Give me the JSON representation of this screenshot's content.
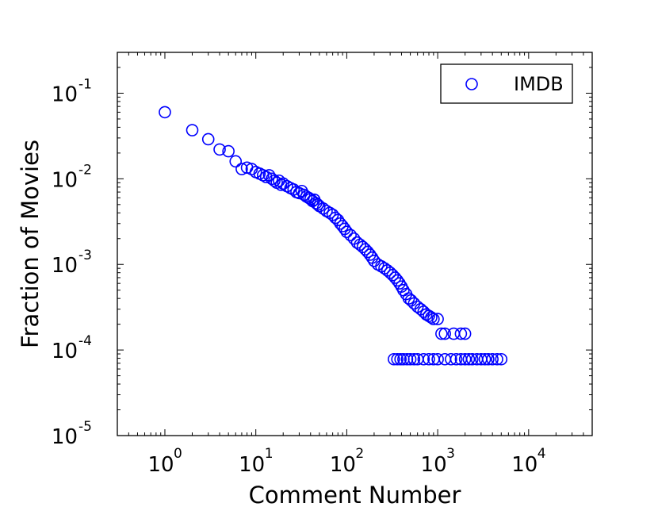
{
  "chart_data": {
    "type": "scatter",
    "xlabel": "Comment Number",
    "ylabel": "Fraction of Movies",
    "x_scale": "log",
    "y_scale": "log",
    "xlim": [
      0.3,
      50000
    ],
    "ylim": [
      1e-05,
      0.3
    ],
    "x_ticks": [
      {
        "base": "10",
        "exp": "0",
        "value": 1
      },
      {
        "base": "10",
        "exp": "1",
        "value": 10
      },
      {
        "base": "10",
        "exp": "2",
        "value": 100
      },
      {
        "base": "10",
        "exp": "3",
        "value": 1000
      },
      {
        "base": "10",
        "exp": "4",
        "value": 10000
      }
    ],
    "y_ticks": [
      {
        "base": "10",
        "exp": "-1",
        "value": 0.1
      },
      {
        "base": "10",
        "exp": "-2",
        "value": 0.01
      },
      {
        "base": "10",
        "exp": "-3",
        "value": 0.001
      },
      {
        "base": "10",
        "exp": "-4",
        "value": 0.0001
      },
      {
        "base": "10",
        "exp": "-5",
        "value": 1e-05
      }
    ],
    "grid": false,
    "legend_position": "top-right",
    "series": [
      {
        "name": "IMDB",
        "color": "#0000ff",
        "marker": "open-circle",
        "x": [
          1,
          2,
          3,
          4,
          5,
          6,
          7,
          8,
          9,
          10,
          11,
          12,
          13,
          14,
          15,
          16,
          17,
          18,
          19,
          20,
          22,
          24,
          26,
          28,
          30,
          32,
          34,
          36,
          38,
          40,
          42,
          44,
          46,
          48,
          50,
          55,
          60,
          65,
          70,
          75,
          80,
          85,
          90,
          95,
          100,
          110,
          120,
          130,
          140,
          150,
          160,
          170,
          180,
          190,
          200,
          220,
          240,
          260,
          280,
          300,
          320,
          340,
          360,
          380,
          400,
          420,
          450,
          480,
          510,
          550,
          600,
          650,
          700,
          750,
          800,
          850,
          900,
          1000,
          1100,
          1200,
          1500,
          1800,
          2000,
          330,
          360,
          390,
          420,
          460,
          500,
          550,
          600,
          700,
          800,
          900,
          1000,
          1200,
          1400,
          1600,
          1800,
          2000,
          2200,
          2400,
          2700,
          3000,
          3300,
          3600,
          4000,
          4500,
          5000
        ],
        "y": [
          0.06,
          0.037,
          0.029,
          0.022,
          0.021,
          0.016,
          0.013,
          0.0135,
          0.013,
          0.012,
          0.0115,
          0.011,
          0.0105,
          0.011,
          0.01,
          0.0095,
          0.009,
          0.0095,
          0.0085,
          0.0088,
          0.0082,
          0.0078,
          0.0075,
          0.007,
          0.0068,
          0.0072,
          0.0065,
          0.0062,
          0.006,
          0.0058,
          0.0055,
          0.0057,
          0.0052,
          0.005,
          0.0048,
          0.0045,
          0.0042,
          0.004,
          0.0038,
          0.0035,
          0.0033,
          0.003,
          0.0028,
          0.0026,
          0.0024,
          0.0022,
          0.002,
          0.0018,
          0.0017,
          0.0016,
          0.0015,
          0.0014,
          0.0013,
          0.0012,
          0.0011,
          0.001,
          0.00095,
          0.0009,
          0.00085,
          0.0008,
          0.00075,
          0.0007,
          0.00065,
          0.0006,
          0.00055,
          0.0005,
          0.00045,
          0.0004,
          0.00038,
          0.00035,
          0.00032,
          0.0003,
          0.00028,
          0.00026,
          0.00025,
          0.00024,
          0.00023,
          0.00023,
          0.000155,
          0.000155,
          0.000155,
          0.000155,
          0.000155,
          7.8e-05,
          7.8e-05,
          7.8e-05,
          7.8e-05,
          7.8e-05,
          7.8e-05,
          7.8e-05,
          7.8e-05,
          7.8e-05,
          7.8e-05,
          7.8e-05,
          7.8e-05,
          7.8e-05,
          7.8e-05,
          7.8e-05,
          7.8e-05,
          7.8e-05,
          7.8e-05,
          7.8e-05,
          7.8e-05,
          7.8e-05,
          7.8e-05,
          7.8e-05,
          7.8e-05,
          7.8e-05,
          7.8e-05
        ]
      }
    ]
  }
}
